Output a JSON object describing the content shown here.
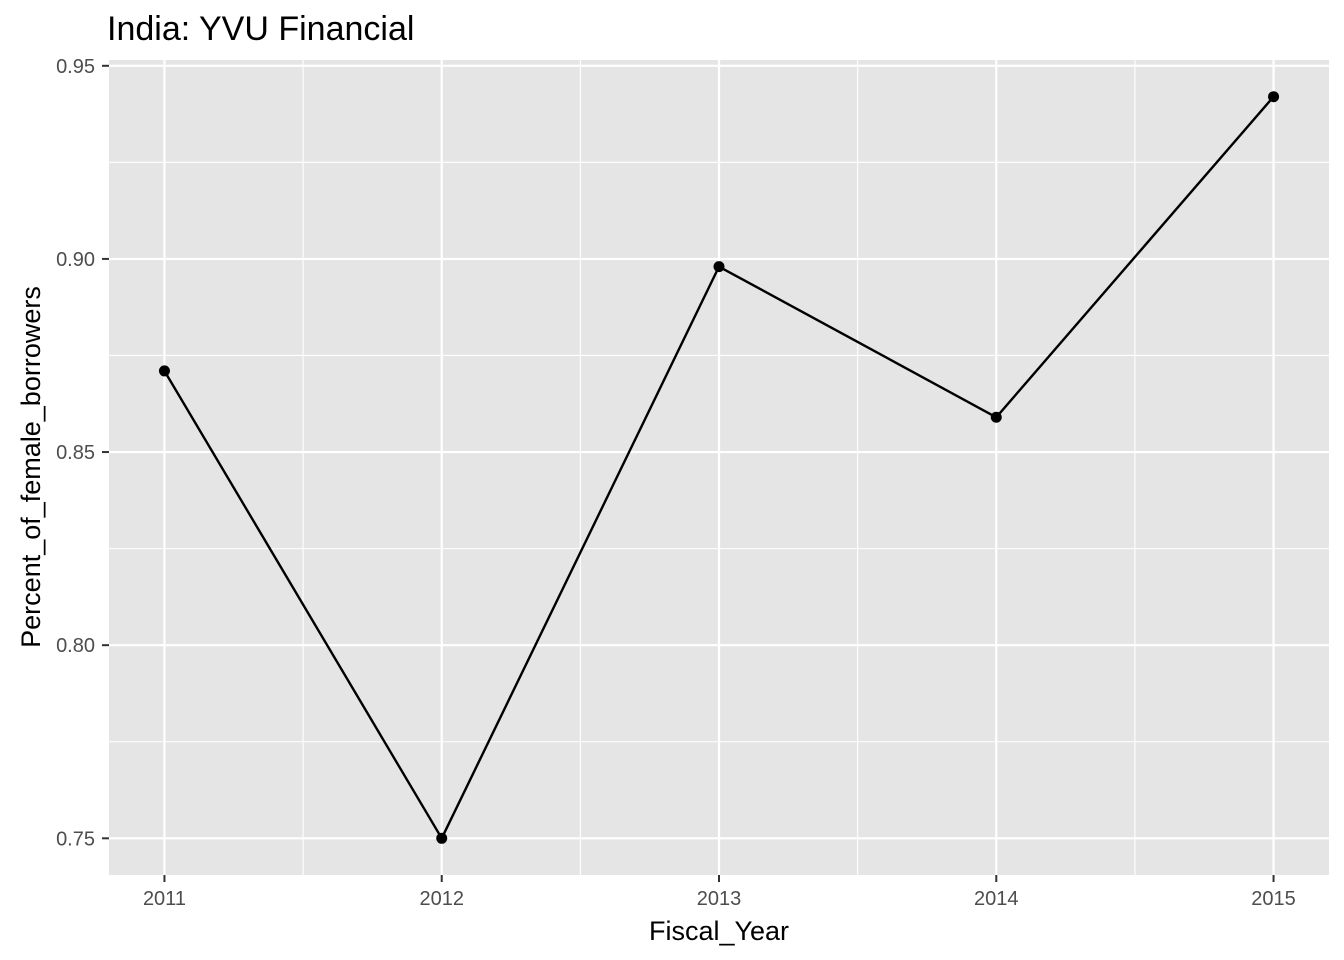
{
  "chart_data": {
    "type": "line",
    "title": "India:  YVU Financial",
    "xlabel": "Fiscal_Year",
    "ylabel": "Percent_of_female_borrowers",
    "x": [
      2011,
      2012,
      2013,
      2014,
      2015
    ],
    "x_tick_labels": [
      "2011",
      "2012",
      "2013",
      "2014",
      "2015"
    ],
    "y_ticks": [
      0.75,
      0.8,
      0.85,
      0.9,
      0.95
    ],
    "y_tick_labels": [
      "0.75",
      "0.80",
      "0.85",
      "0.90",
      "0.95"
    ],
    "series": [
      {
        "values": [
          0.871,
          0.75,
          0.898,
          0.859,
          0.942
        ]
      }
    ],
    "xlim": [
      2010.8,
      2015.2
    ],
    "ylim": [
      0.7405,
      0.9515
    ],
    "grid": true,
    "legend": "none",
    "colors": {
      "panel_background": "#e5e5e5",
      "grid": "#ffffff",
      "series": "#000000",
      "tick": "#333333"
    }
  }
}
